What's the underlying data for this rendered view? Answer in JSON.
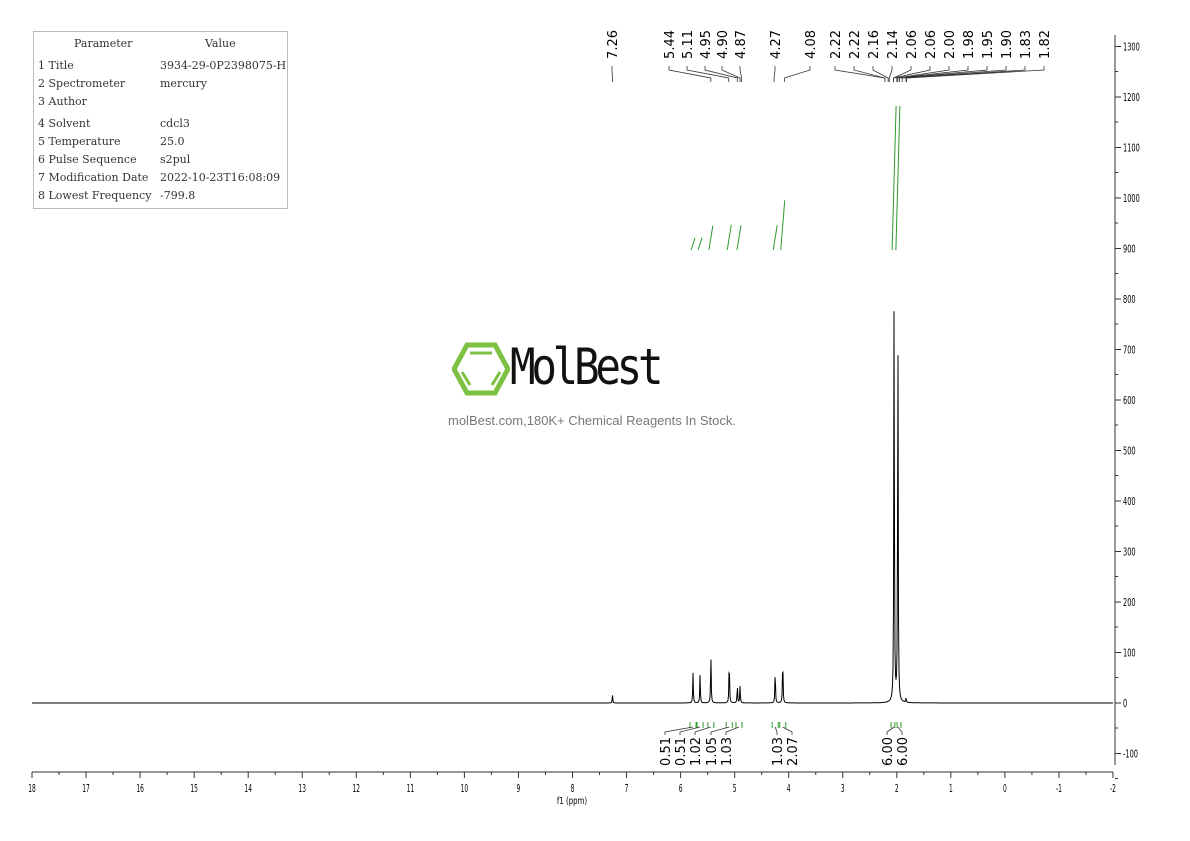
{
  "parameters": {
    "header": [
      "Parameter",
      "Value"
    ],
    "rows": [
      {
        "label": "1 Title",
        "value": "3934-29-0P2398075-H"
      },
      {
        "label": "2 Spectrometer",
        "value": "mercury"
      },
      {
        "label": "3 Author",
        "value": ""
      },
      {
        "label": "4 Solvent",
        "value": "cdcl3"
      },
      {
        "label": "5 Temperature",
        "value": "25.0"
      },
      {
        "label": "6 Pulse Sequence",
        "value": "s2pul"
      },
      {
        "label": "7 Modification Date",
        "value": "2022-10-23T16:08:09"
      },
      {
        "label": "8 Lowest Frequency",
        "value": "-799.8"
      }
    ]
  },
  "watermark": {
    "brand": "MolBest",
    "tagline": "molBest.com,180K+ Chemical Reagents In Stock.",
    "color": "#7dc142"
  },
  "chart_data": {
    "type": "line",
    "xlabel": "f1 (ppm)",
    "xlim": [
      18,
      -2
    ],
    "ylim": [
      -100,
      1300
    ],
    "x_ticks": [
      "18",
      "17",
      "16",
      "15",
      "14",
      "13",
      "12",
      "11",
      "10",
      "9",
      "8",
      "7",
      "6",
      "5",
      "4",
      "3",
      "2",
      "1",
      "0",
      "-1",
      "-2"
    ],
    "y_ticks": [
      "-100",
      "0",
      "100",
      "200",
      "300",
      "400",
      "500",
      "600",
      "700",
      "800",
      "900",
      "1000",
      "1100",
      "1200",
      "1300"
    ],
    "peaks": [
      {
        "ppm": 7.26,
        "height": 15
      },
      {
        "ppm": 5.77,
        "height": 60
      },
      {
        "ppm": 5.64,
        "height": 57
      },
      {
        "ppm": 5.44,
        "height": 100
      },
      {
        "ppm": 5.1,
        "height": 93
      },
      {
        "ppm": 4.95,
        "height": 35
      },
      {
        "ppm": 4.9,
        "height": 34
      },
      {
        "ppm": 4.25,
        "height": 68
      },
      {
        "ppm": 4.11,
        "height": 95
      },
      {
        "ppm": 2.05,
        "height": 840
      },
      {
        "ppm": 1.98,
        "height": 775
      },
      {
        "ppm": 1.83,
        "height": 8
      }
    ],
    "peak_labels": [
      "7.26",
      "5.44",
      "5.11",
      "4.95",
      "4.90",
      "4.87",
      "4.27",
      "4.08",
      "2.22",
      "2.22",
      "2.16",
      "2.14",
      "2.06",
      "2.06",
      "2.00",
      "1.98",
      "1.95",
      "1.90",
      "1.83",
      "1.82"
    ],
    "integrals": [
      {
        "ppm": 5.77,
        "value": "0.51"
      },
      {
        "ppm": 5.64,
        "value": "0.51"
      },
      {
        "ppm": 5.44,
        "value": "1.02"
      },
      {
        "ppm": 5.1,
        "value": "1.05"
      },
      {
        "ppm": 4.92,
        "value": "1.03"
      },
      {
        "ppm": 4.25,
        "value": "1.03"
      },
      {
        "ppm": 4.11,
        "value": "2.07"
      },
      {
        "ppm": 2.05,
        "value": "6.00"
      },
      {
        "ppm": 1.98,
        "value": "6.00"
      }
    ],
    "line_color": "#000000",
    "integral_color": "#2e9a2e"
  }
}
